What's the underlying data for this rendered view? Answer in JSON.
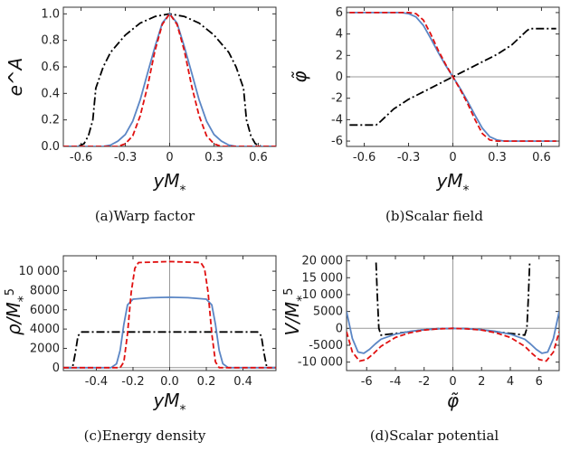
{
  "chart_data": [
    {
      "type": "line",
      "caption": "(a)Warp factor",
      "xlabel": "yM*",
      "ylabel": "e^A",
      "xlim": [
        -0.72,
        0.72
      ],
      "ylim": [
        0,
        1.05
      ],
      "xticks": [
        -0.6,
        -0.3,
        0,
        0.3,
        0.6
      ],
      "xtick_labels": [
        "-0.6",
        "-0.3",
        "0",
        "0.3",
        "0.6"
      ],
      "yticks": [
        0,
        0.2,
        0.4,
        0.6,
        0.8,
        1.0
      ],
      "ytick_labels": [
        "0.0",
        "0.2",
        "0.4",
        "0.6",
        "0.8",
        "1.0"
      ],
      "grid": false,
      "series": [
        {
          "style": "dash-dot",
          "color": "#000000",
          "x": [
            -0.72,
            -0.62,
            -0.58,
            -0.55,
            -0.52,
            -0.5,
            -0.45,
            -0.4,
            -0.3,
            -0.2,
            -0.1,
            0,
            0.1,
            0.2,
            0.3,
            0.4,
            0.45,
            0.5,
            0.52,
            0.55,
            0.58,
            0.62,
            0.72
          ],
          "y": [
            0.0,
            0.0,
            0.02,
            0.08,
            0.2,
            0.44,
            0.6,
            0.71,
            0.84,
            0.93,
            0.98,
            1.0,
            0.98,
            0.93,
            0.84,
            0.71,
            0.6,
            0.44,
            0.2,
            0.08,
            0.02,
            0.0,
            0.0
          ]
        },
        {
          "style": "solid",
          "color": "#5b86c5",
          "x": [
            -0.72,
            -0.45,
            -0.4,
            -0.35,
            -0.3,
            -0.25,
            -0.2,
            -0.15,
            -0.1,
            -0.05,
            0,
            0.05,
            0.1,
            0.15,
            0.2,
            0.25,
            0.3,
            0.35,
            0.4,
            0.45,
            0.72
          ],
          "y": [
            0.0,
            0.0,
            0.01,
            0.04,
            0.09,
            0.19,
            0.35,
            0.55,
            0.75,
            0.93,
            1.0,
            0.93,
            0.75,
            0.55,
            0.35,
            0.19,
            0.09,
            0.04,
            0.01,
            0.0,
            0.0
          ]
        },
        {
          "style": "dashed",
          "color": "#e01010",
          "x": [
            -0.72,
            -0.35,
            -0.3,
            -0.25,
            -0.2,
            -0.15,
            -0.1,
            -0.05,
            0,
            0.05,
            0.1,
            0.15,
            0.2,
            0.25,
            0.3,
            0.35,
            0.72
          ],
          "y": [
            0.0,
            0.0,
            0.02,
            0.08,
            0.23,
            0.45,
            0.72,
            0.92,
            1.0,
            0.92,
            0.72,
            0.45,
            0.23,
            0.08,
            0.02,
            0.0,
            0.0
          ]
        }
      ]
    },
    {
      "type": "line",
      "caption": "(b)Scalar field",
      "xlabel": "yM*",
      "ylabel": "φ̃",
      "xlim": [
        -0.72,
        0.72
      ],
      "ylim": [
        -6.5,
        6.5
      ],
      "xticks": [
        -0.6,
        -0.3,
        0,
        0.3,
        0.6
      ],
      "xtick_labels": [
        "-0.6",
        "-0.3",
        "0",
        "0.3",
        "0.6"
      ],
      "yticks": [
        -6,
        -4,
        -2,
        0,
        2,
        4,
        6
      ],
      "ytick_labels": [
        "-6",
        "-4",
        "-2",
        "0",
        "2",
        "4",
        "6"
      ],
      "grid": false,
      "series": [
        {
          "style": "dash-dot",
          "color": "#000000",
          "x": [
            -0.7,
            -0.52,
            -0.5,
            -0.4,
            -0.3,
            -0.2,
            -0.1,
            0,
            0.1,
            0.2,
            0.3,
            0.4,
            0.5,
            0.52,
            0.7
          ],
          "y": [
            -4.5,
            -4.5,
            -4.3,
            -3.0,
            -2.1,
            -1.4,
            -0.7,
            0,
            0.7,
            1.4,
            2.1,
            3.0,
            4.3,
            4.5,
            4.5
          ]
        },
        {
          "style": "solid",
          "color": "#5b86c5",
          "x": [
            -0.7,
            -0.35,
            -0.3,
            -0.25,
            -0.2,
            -0.15,
            -0.1,
            -0.05,
            0,
            0.05,
            0.1,
            0.15,
            0.2,
            0.25,
            0.3,
            0.35,
            0.7
          ],
          "y": [
            6.0,
            6.0,
            5.9,
            5.6,
            4.8,
            3.6,
            2.3,
            1.1,
            0,
            -1.1,
            -2.3,
            -3.6,
            -4.8,
            -5.6,
            -5.9,
            -6.0,
            -6.0
          ]
        },
        {
          "style": "dashed",
          "color": "#e01010",
          "x": [
            -0.7,
            -0.3,
            -0.25,
            -0.2,
            -0.15,
            -0.1,
            -0.05,
            0,
            0.05,
            0.1,
            0.15,
            0.2,
            0.25,
            0.3,
            0.7
          ],
          "y": [
            6.0,
            6.0,
            5.9,
            5.3,
            4.0,
            2.5,
            1.2,
            0,
            -1.2,
            -2.5,
            -4.0,
            -5.3,
            -5.9,
            -6.0,
            -6.0
          ]
        }
      ]
    },
    {
      "type": "line",
      "caption": "(c)Energy density",
      "xlabel": "yM*",
      "ylabel": "ρ/M*^5",
      "xlim": [
        -0.58,
        0.58
      ],
      "ylim": [
        -300,
        11600
      ],
      "xticks": [
        -0.4,
        -0.2,
        0,
        0.2,
        0.4
      ],
      "xtick_labels": [
        "-0.4",
        "-0.2",
        "0.0",
        "0.2",
        "0.4"
      ],
      "yticks": [
        0,
        2000,
        4000,
        6000,
        8000,
        10000
      ],
      "ytick_labels": [
        "0",
        "2000",
        "4000",
        "6000",
        "8000",
        "10 000"
      ],
      "grid": false,
      "series": [
        {
          "style": "dash-dot",
          "color": "#000000",
          "x": [
            -0.58,
            -0.53,
            -0.515,
            -0.5,
            -0.48,
            0.48,
            0.5,
            0.515,
            0.53,
            0.58
          ],
          "y": [
            0,
            0,
            1500,
            3300,
            3700,
            3700,
            3300,
            1500,
            0,
            0
          ]
        },
        {
          "style": "solid",
          "color": "#5b86c5",
          "x": [
            -0.58,
            -0.32,
            -0.29,
            -0.27,
            -0.25,
            -0.23,
            -0.2,
            -0.1,
            0,
            0.1,
            0.2,
            0.23,
            0.25,
            0.27,
            0.29,
            0.32,
            0.58
          ],
          "y": [
            0,
            0,
            400,
            1800,
            4500,
            6500,
            7100,
            7250,
            7300,
            7250,
            7100,
            6500,
            4500,
            1800,
            400,
            0,
            0
          ]
        },
        {
          "style": "dashed",
          "color": "#e01010",
          "x": [
            -0.58,
            -0.27,
            -0.25,
            -0.23,
            -0.21,
            -0.19,
            -0.17,
            0,
            0.17,
            0.19,
            0.21,
            0.23,
            0.25,
            0.27,
            0.58
          ],
          "y": [
            0,
            0,
            600,
            3500,
            7800,
            10300,
            10900,
            11000,
            10900,
            10300,
            7800,
            3500,
            600,
            0,
            0
          ]
        }
      ]
    },
    {
      "type": "line",
      "caption": "(d)Scalar potential",
      "xlabel": "φ̃",
      "ylabel": "V/M*^5",
      "xlim": [
        -7.4,
        7.4
      ],
      "ylim": [
        -12500,
        21500
      ],
      "xticks": [
        -6,
        -4,
        -2,
        0,
        2,
        4,
        6
      ],
      "xtick_labels": [
        "-6",
        "-4",
        "-2",
        "0",
        "2",
        "4",
        "6"
      ],
      "yticks": [
        -10000,
        -5000,
        0,
        5000,
        10000,
        15000,
        20000
      ],
      "ytick_labels": [
        "-10 000",
        "-5000",
        "0",
        "5000",
        "10 000",
        "15 000",
        "20 000"
      ],
      "grid": false,
      "series": [
        {
          "style": "dash-dot",
          "color": "#000000",
          "x": [
            -5.35,
            -5.25,
            -5.15,
            -5.0,
            -4.6,
            -4.0,
            -3.0,
            -2.0,
            -1.0,
            0,
            1.0,
            2.0,
            3.0,
            4.0,
            4.6,
            5.0,
            5.15,
            5.25,
            5.35
          ],
          "y": [
            19500,
            9000,
            0,
            -2000,
            -1800,
            -1500,
            -1000,
            -400,
            -100,
            0,
            -100,
            -400,
            -1000,
            -1500,
            -1800,
            -2000,
            0,
            9000,
            19500
          ]
        },
        {
          "style": "solid",
          "color": "#5b86c5",
          "x": [
            -7.4,
            -7.0,
            -6.6,
            -6.2,
            -5.8,
            -5.4,
            -5.0,
            -4.0,
            -3.0,
            -2.0,
            -1.0,
            0,
            1.0,
            2.0,
            3.0,
            4.0,
            5.0,
            5.4,
            5.8,
            6.2,
            6.6,
            7.0,
            7.4
          ],
          "y": [
            5000,
            -3000,
            -7000,
            -7400,
            -6200,
            -4600,
            -3200,
            -1700,
            -900,
            -400,
            -100,
            0,
            -100,
            -400,
            -900,
            -1700,
            -3200,
            -4600,
            -6200,
            -7400,
            -7000,
            -3000,
            5000
          ]
        },
        {
          "style": "dashed",
          "color": "#e01010",
          "x": [
            -7.4,
            -7.0,
            -6.5,
            -6.0,
            -5.5,
            -5.0,
            -4.0,
            -3.0,
            -2.0,
            -1.0,
            0,
            1.0,
            2.0,
            3.0,
            4.0,
            5.0,
            5.5,
            6.0,
            6.5,
            7.0,
            7.4
          ],
          "y": [
            -1000,
            -7000,
            -9700,
            -9200,
            -7400,
            -5300,
            -2700,
            -1300,
            -500,
            -150,
            0,
            -150,
            -500,
            -1300,
            -2700,
            -5300,
            -7400,
            -9200,
            -9700,
            -7000,
            -1000
          ]
        }
      ]
    }
  ]
}
